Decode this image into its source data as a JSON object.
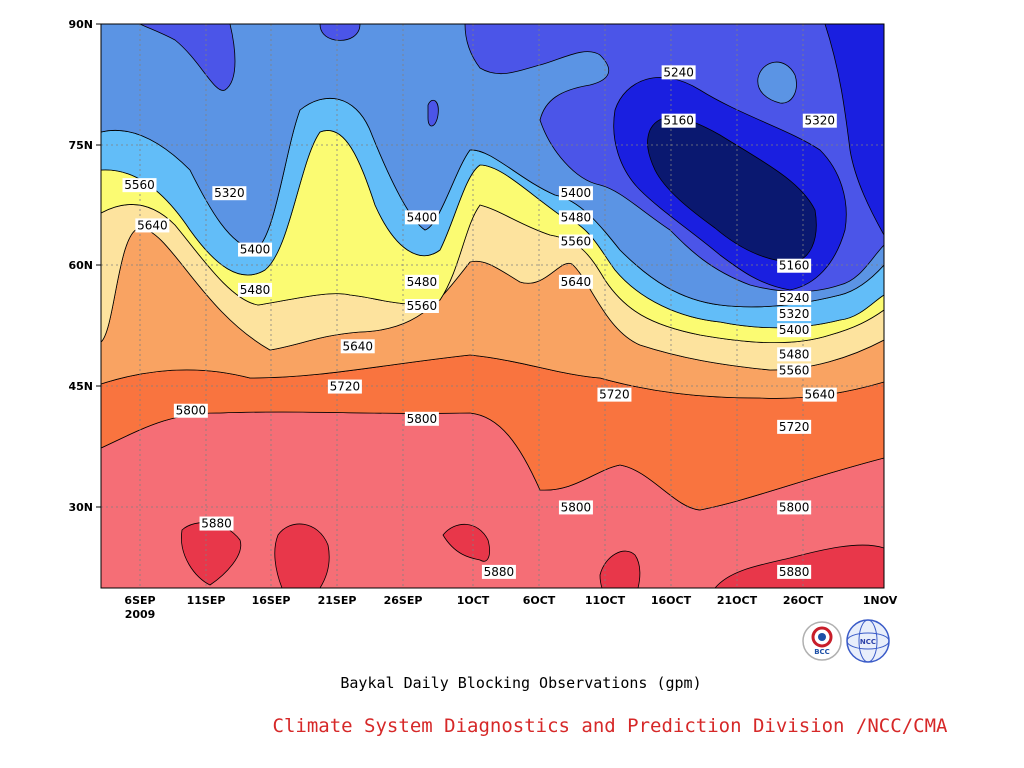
{
  "chart_data": {
    "type": "heatmap",
    "title": "Baykal Daily Blocking Observations (gpm)",
    "x_ticks": [
      "6SEP",
      "11SEP",
      "16SEP",
      "21SEP",
      "26SEP",
      "1OCT",
      "6OCT",
      "11OCT",
      "16OCT",
      "21OCT",
      "26OCT",
      "1NOV"
    ],
    "x_year_label": "2009",
    "x_range": [
      "2009-09-01",
      "2009-11-01"
    ],
    "y_ticks": [
      "30N",
      "45N",
      "60N",
      "75N",
      "90N"
    ],
    "y_range": [
      20,
      90
    ],
    "grid": true,
    "contour_levels": [
      5080,
      5160,
      5240,
      5320,
      5400,
      5480,
      5560,
      5640,
      5720,
      5800,
      5880
    ],
    "fill_colors": [
      "#0a1870",
      "#1a1fe0",
      "#4b55e8",
      "#5b94e4",
      "#62bdf8",
      "#fbfb72",
      "#fde39e",
      "#f9a362",
      "#f9743f",
      "#f56e76",
      "#e8374a"
    ],
    "contour_labels": [
      {
        "value": "5240",
        "date": "2009-10-16",
        "lat": 84
      },
      {
        "value": "5160",
        "date": "2009-10-16",
        "lat": 78
      },
      {
        "value": "5320",
        "date": "2009-10-27",
        "lat": 78
      },
      {
        "value": "5560",
        "date": "2009-09-04",
        "lat": 70
      },
      {
        "value": "5320",
        "date": "2009-09-11",
        "lat": 69
      },
      {
        "value": "5640",
        "date": "2009-09-05",
        "lat": 65
      },
      {
        "value": "5400",
        "date": "2009-09-13",
        "lat": 62
      },
      {
        "value": "5480",
        "date": "2009-09-13",
        "lat": 57
      },
      {
        "value": "5400",
        "date": "2009-09-26",
        "lat": 66
      },
      {
        "value": "5480",
        "date": "2009-09-26",
        "lat": 58
      },
      {
        "value": "5560",
        "date": "2009-09-26",
        "lat": 55
      },
      {
        "value": "5400",
        "date": "2009-10-08",
        "lat": 69
      },
      {
        "value": "5480",
        "date": "2009-10-08",
        "lat": 66
      },
      {
        "value": "5560",
        "date": "2009-10-08",
        "lat": 63
      },
      {
        "value": "5640",
        "date": "2009-10-08",
        "lat": 58
      },
      {
        "value": "5640",
        "date": "2009-09-21",
        "lat": 50
      },
      {
        "value": "5720",
        "date": "2009-09-20",
        "lat": 45
      },
      {
        "value": "5800",
        "date": "2009-09-08",
        "lat": 42
      },
      {
        "value": "5800",
        "date": "2009-09-26",
        "lat": 41
      },
      {
        "value": "5720",
        "date": "2009-10-11",
        "lat": 44
      },
      {
        "value": "5800",
        "date": "2009-10-08",
        "lat": 30
      },
      {
        "value": "5160",
        "date": "2009-10-25",
        "lat": 60
      },
      {
        "value": "5240",
        "date": "2009-10-25",
        "lat": 56
      },
      {
        "value": "5320",
        "date": "2009-10-25",
        "lat": 54
      },
      {
        "value": "5400",
        "date": "2009-10-25",
        "lat": 52
      },
      {
        "value": "5480",
        "date": "2009-10-25",
        "lat": 49
      },
      {
        "value": "5560",
        "date": "2009-10-25",
        "lat": 47
      },
      {
        "value": "5640",
        "date": "2009-10-27",
        "lat": 44
      },
      {
        "value": "5720",
        "date": "2009-10-25",
        "lat": 40
      },
      {
        "value": "5800",
        "date": "2009-10-25",
        "lat": 30
      },
      {
        "value": "5880",
        "date": "2009-09-10",
        "lat": 28
      },
      {
        "value": "5880",
        "date": "2009-10-02",
        "lat": 22
      },
      {
        "value": "5880",
        "date": "2009-10-25",
        "lat": 22
      }
    ]
  },
  "footer": {
    "credit": "Climate System Diagnostics and Prediction Division /NCC/CMA",
    "logo_left_text": "BCC",
    "logo_right_text": "NCC"
  }
}
